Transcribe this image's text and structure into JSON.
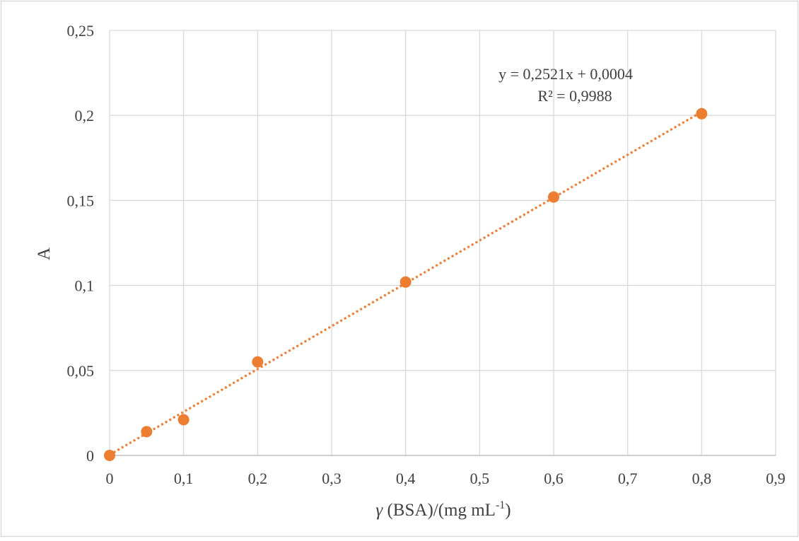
{
  "chart_data": {
    "type": "scatter",
    "xlabel_main": "γ",
    "xlabel_rest": " (BSA)/(mg mL",
    "xlabel_sup": "-1",
    "xlabel_end": ")",
    "ylabel": "A",
    "xlim": [
      0,
      0.9
    ],
    "ylim": [
      0,
      0.25
    ],
    "x_ticks": [
      0,
      0.1,
      0.2,
      0.3,
      0.4,
      0.5,
      0.6,
      0.7,
      0.8,
      0.9
    ],
    "x_tick_labels": [
      "0",
      "0,1",
      "0,2",
      "0,3",
      "0,4",
      "0,5",
      "0,6",
      "0,7",
      "0,8",
      "0,9"
    ],
    "y_ticks": [
      0,
      0.05,
      0.1,
      0.15,
      0.2,
      0.25
    ],
    "y_tick_labels": [
      "0",
      "0,05",
      "0,1",
      "0,15",
      "0,2",
      "0,25"
    ],
    "grid": true,
    "series": [
      {
        "x": [
          0,
          0.05,
          0.1,
          0.2,
          0.4,
          0.6,
          0.8
        ],
        "y": [
          0,
          0.014,
          0.021,
          0.055,
          0.102,
          0.152,
          0.201
        ],
        "color": "#ED7D31"
      }
    ],
    "trendline": {
      "type": "linear",
      "slope": 0.2521,
      "intercept": 0.0004,
      "x_range": [
        0,
        0.8
      ],
      "style": "dotted",
      "color": "#ED7D31",
      "equation": "y = 0,2521x + 0,0004",
      "r_squared": "R² = 0,9988"
    }
  }
}
